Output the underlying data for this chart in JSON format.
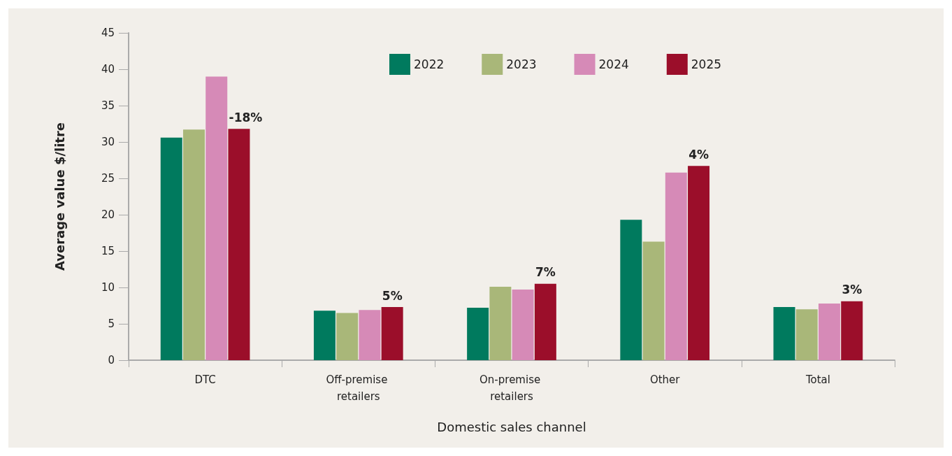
{
  "chart_data": {
    "type": "bar",
    "xlabel": "Domestic sales channel",
    "ylabel": "Average value $/litre",
    "categories": [
      "DTC",
      "Off-premise retailers",
      "On-premise retailers",
      "Other",
      "Total"
    ],
    "series": [
      {
        "name": "2022",
        "color": "#007a5e",
        "values": [
          30.6,
          6.8,
          7.2,
          19.3,
          7.3
        ]
      },
      {
        "name": "2023",
        "color": "#a9b779",
        "values": [
          31.7,
          6.5,
          10.1,
          16.3,
          7.0
        ]
      },
      {
        "name": "2024",
        "color": "#d68ab7",
        "values": [
          39.0,
          6.9,
          9.7,
          25.8,
          7.8
        ]
      },
      {
        "name": "2025",
        "color": "#9b0e2a",
        "values": [
          31.8,
          7.3,
          10.5,
          26.7,
          8.1
        ]
      }
    ],
    "annotations": [
      "-18%",
      "5%",
      "7%",
      "4%",
      "3%"
    ],
    "ylim": [
      0,
      45
    ],
    "yticks": [
      0,
      5,
      10,
      15,
      20,
      25,
      30,
      35,
      40,
      45
    ],
    "grid": false,
    "legend": "top"
  }
}
